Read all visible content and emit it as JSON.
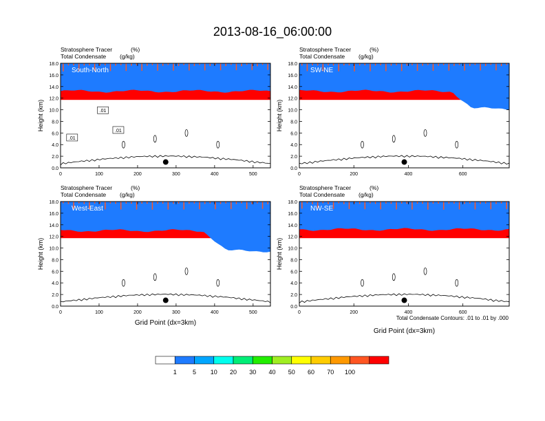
{
  "figure": {
    "title": "2013-08-16_06:00:00",
    "footnote": "Total Condensate Contours: .01 to .01 by .000"
  },
  "chart_data": [
    {
      "type": "heatmap",
      "panel": "South-North",
      "left_titles": [
        "Stratosphere Tracer",
        "Total Condensate"
      ],
      "right_titles": [
        "(%)",
        "(g/kg)"
      ],
      "ylabel": "Height (km)",
      "xlabel": "",
      "xlim": [
        0,
        545
      ],
      "ylim": [
        0,
        18
      ],
      "xticks": [
        0,
        100,
        200,
        300,
        400,
        500
      ],
      "yticks": [
        "0.0",
        "2.0",
        "4.0",
        "6.0",
        "8.0",
        "10.0",
        "12.0",
        "14.0",
        "16.0",
        "18.0"
      ],
      "tropopause_base_km": 13.2,
      "tropopause_dip": null,
      "contour_labels": [
        ".01",
        ".01",
        ".01"
      ],
      "marker_x": 273,
      "marker_y_km": 1.0
    },
    {
      "type": "heatmap",
      "panel": "SW-NE",
      "left_titles": [
        "Stratosphere Tracer",
        "Total Condensate"
      ],
      "right_titles": [
        "(%)",
        "(g/kg)"
      ],
      "ylabel": "Height (km)",
      "xlabel": "",
      "xlim": [
        0,
        770
      ],
      "ylim": [
        0,
        18
      ],
      "xticks": [
        0,
        200,
        400,
        600
      ],
      "yticks": [
        "0.0",
        "2.0",
        "4.0",
        "6.0",
        "8.0",
        "10.0",
        "12.0",
        "14.0",
        "16.0",
        "18.0"
      ],
      "tropopause_base_km": 13.2,
      "tropopause_dip": {
        "x_start": 560,
        "x_end": 770,
        "depth_km": 3.0
      },
      "contour_labels": [],
      "marker_x": 385,
      "marker_y_km": 1.0
    },
    {
      "type": "heatmap",
      "panel": "West-East",
      "left_titles": [
        "Stratosphere Tracer",
        "Total Condensate"
      ],
      "right_titles": [
        "(%)",
        "(g/kg)"
      ],
      "ylabel": "Height (km)",
      "xlabel": "Grid Point (dx=3km)",
      "xlim": [
        0,
        545
      ],
      "ylim": [
        0,
        18
      ],
      "xticks": [
        0,
        100,
        200,
        300,
        400,
        500
      ],
      "yticks": [
        "0.0",
        "2.0",
        "4.0",
        "6.0",
        "8.0",
        "10.0",
        "12.0",
        "14.0",
        "16.0",
        "18.0"
      ],
      "tropopause_base_km": 13.0,
      "tropopause_dip": {
        "x_start": 370,
        "x_end": 545,
        "depth_km": 3.5
      },
      "contour_labels": [],
      "marker_x": 273,
      "marker_y_km": 1.0
    },
    {
      "type": "heatmap",
      "panel": "NW-SE",
      "left_titles": [
        "Stratosphere Tracer",
        "Total Condensate"
      ],
      "right_titles": [
        "(%)",
        "(g/kg)"
      ],
      "ylabel": "Height (km)",
      "xlabel": "Grid Point (dx=3km)",
      "xlim": [
        0,
        770
      ],
      "ylim": [
        0,
        18
      ],
      "xticks": [
        0,
        200,
        400,
        600
      ],
      "yticks": [
        "0.0",
        "2.0",
        "4.0",
        "6.0",
        "8.0",
        "10.0",
        "12.0",
        "14.0",
        "16.0",
        "18.0"
      ],
      "tropopause_base_km": 13.2,
      "tropopause_dip": null,
      "contour_labels": [],
      "marker_x": 385,
      "marker_y_km": 1.0
    }
  ],
  "colorbar": {
    "labels": [
      "1",
      "5",
      "10",
      "20",
      "30",
      "40",
      "50",
      "60",
      "70",
      "100"
    ],
    "colors": [
      "#ffffff",
      "#1e7bff",
      "#00a6ff",
      "#00ffee",
      "#00ee77",
      "#22ee00",
      "#a0ee22",
      "#ffff00",
      "#ffcc00",
      "#ff9900",
      "#ff5522",
      "#ff0000"
    ]
  }
}
